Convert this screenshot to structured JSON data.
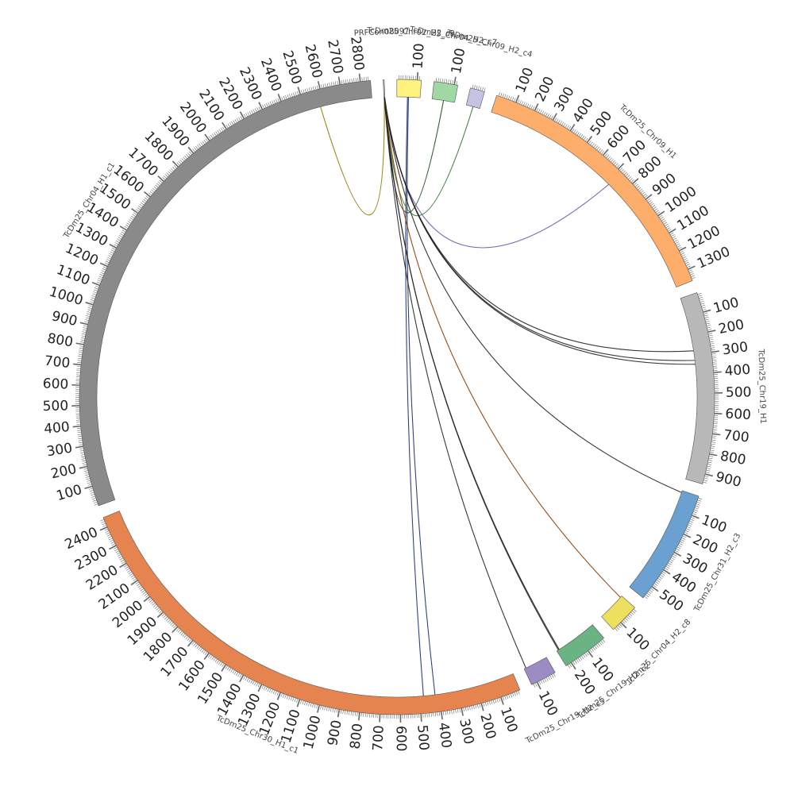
{
  "diagram": {
    "type": "circos",
    "segments": [
      {
        "name": "PRFCon08097",
        "length": 5,
        "color": "#b9b9d8",
        "labels": []
      },
      {
        "name": "TcDm25_Chr02_H2_c9",
        "length": 120,
        "color": "#fff27f",
        "labels": [
          "100"
        ]
      },
      {
        "name": "TcDm25_Chr04_H2_c7",
        "length": 118,
        "color": "#a0d8a4",
        "labels": [
          "100"
        ]
      },
      {
        "name": "TcDm25_Chr09_H2_c4",
        "length": 72,
        "color": "#c5c2e6",
        "labels": []
      },
      {
        "name": "TcDm25_Chr09_H1",
        "length": 1360,
        "color": "#fdae6b",
        "labels": [
          "100",
          "200",
          "300",
          "400",
          "500",
          "600",
          "700",
          "800",
          "900",
          "1000",
          "1100",
          "1200",
          "1300"
        ]
      },
      {
        "name": "TcDm25_Chr19_H1",
        "length": 950,
        "color": "#b8b8b8",
        "labels": [
          "100",
          "200",
          "300",
          "400",
          "500",
          "600",
          "700",
          "800",
          "900"
        ]
      },
      {
        "name": "TcDm25_Chr31_H2_c3",
        "length": 570,
        "color": "#6aa1d1",
        "labels": [
          "100",
          "200",
          "300",
          "400",
          "500"
        ]
      },
      {
        "name": "TcDm25_Chr04_H2_c8",
        "length": 150,
        "color": "#ede05f",
        "labels": [
          "100"
        ]
      },
      {
        "name": "TcDm25_Chr19_H2_c2",
        "length": 230,
        "color": "#6ab382",
        "labels": [
          "100",
          "200"
        ]
      },
      {
        "name": "TcDm25_Chr19_H2_c5",
        "length": 130,
        "color": "#9c8cc4",
        "labels": [
          "100"
        ]
      },
      {
        "name": "TcDm25_Chr30_H1_c1",
        "length": 2450,
        "color": "#e6844f",
        "labels": [
          "100",
          "200",
          "300",
          "400",
          "500",
          "600",
          "700",
          "800",
          "900",
          "1000",
          "1100",
          "1200",
          "1300",
          "1400",
          "1500",
          "1600",
          "1700",
          "1800",
          "1900",
          "2000",
          "2100",
          "2200",
          "2300",
          "2400"
        ]
      },
      {
        "name": "TcDm25_Chr04_H1_c1",
        "length": 2850,
        "color": "#8a8a8a",
        "labels": [
          "100",
          "200",
          "300",
          "400",
          "500",
          "600",
          "700",
          "800",
          "900",
          "1000",
          "1100",
          "1200",
          "1300",
          "1400",
          "1500",
          "1600",
          "1700",
          "1800",
          "1900",
          "2000",
          "2100",
          "2200",
          "2300",
          "2400",
          "2500",
          "2600",
          "2700",
          "2800"
        ]
      }
    ],
    "links": [
      {
        "from": "PRFCon08097",
        "from_pos": 2,
        "to": "TcDm25_Chr04_H1_c1",
        "to_pos": 2580,
        "color": "#8a7a00"
      },
      {
        "from": "TcDm25_Chr02_H2_c9",
        "from_pos": 60,
        "to": "TcDm25_Chr30_H1_c1",
        "to_pos": 420,
        "color": "#1c2f6e"
      },
      {
        "from": "TcDm25_Chr02_H2_c9",
        "from_pos": 55,
        "to": "TcDm25_Chr30_H1_c1",
        "to_pos": 480,
        "color": "#1c2f6e"
      },
      {
        "from": "TcDm25_Chr04_H2_c7",
        "from_pos": 60,
        "to": "PRFCon08097",
        "to_pos": 3,
        "color": "#1d4a1d"
      },
      {
        "from": "TcDm25_Chr09_H2_c4",
        "from_pos": 36,
        "to": "PRFCon08097",
        "to_pos": 3,
        "color": "#3b7a3b"
      },
      {
        "from": "TcDm25_Chr09_H1",
        "from_pos": 720,
        "to": "PRFCon08097",
        "to_pos": 4,
        "color": "#5f5fa8"
      },
      {
        "from": "TcDm25_Chr19_H1",
        "from_pos": 280,
        "to": "PRFCon08097",
        "to_pos": 3,
        "color": "#222222"
      },
      {
        "from": "TcDm25_Chr19_H1",
        "from_pos": 330,
        "to": "PRFCon08097",
        "to_pos": 3,
        "color": "#222222"
      },
      {
        "from": "TcDm25_Chr19_H1",
        "from_pos": 350,
        "to": "PRFCon08097",
        "to_pos": 3,
        "color": "#222222"
      },
      {
        "from": "TcDm25_Chr31_H2_c3",
        "from_pos": 10,
        "to": "PRFCon08097",
        "to_pos": 3,
        "color": "#222222"
      },
      {
        "from": "TcDm25_Chr04_H2_c8",
        "from_pos": 10,
        "to": "PRFCon08097",
        "to_pos": 3,
        "color": "#8a3a00"
      },
      {
        "from": "TcDm25_Chr19_H2_c2",
        "from_pos": 220,
        "to": "PRFCon08097",
        "to_pos": 3,
        "color": "#222222"
      },
      {
        "from": "TcDm25_Chr19_H2_c2",
        "from_pos": 215,
        "to": "PRFCon08097",
        "to_pos": 2,
        "color": "#222222"
      },
      {
        "from": "TcDm25_Chr19_H2_c5",
        "from_pos": 120,
        "to": "PRFCon08097",
        "to_pos": 2,
        "color": "#222222"
      }
    ]
  }
}
